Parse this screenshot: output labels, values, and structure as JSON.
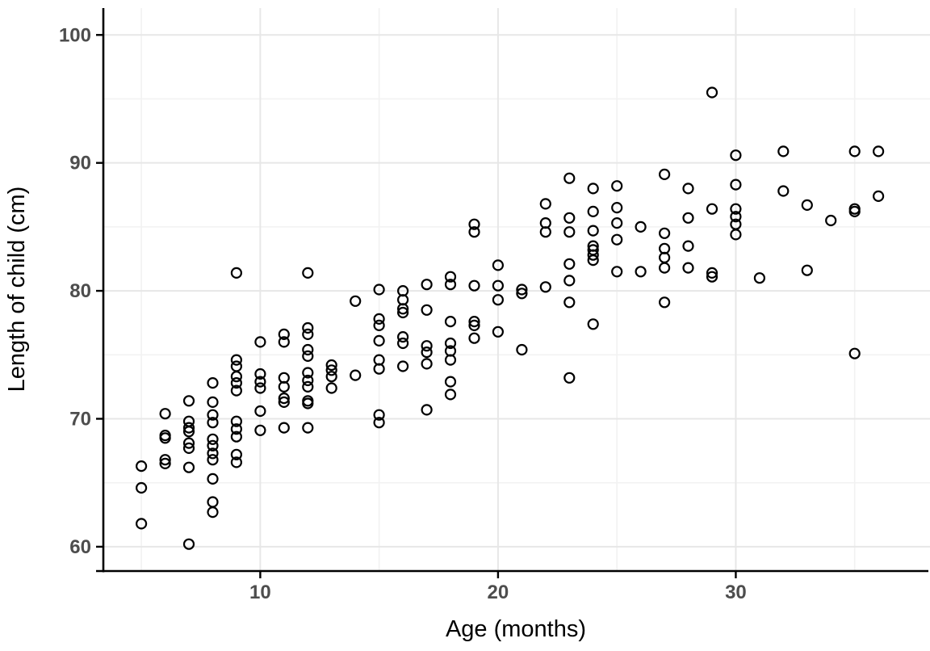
{
  "figure": {
    "background": "#ffffff"
  },
  "style": {
    "point_stroke": "#000000",
    "point_radius": 6,
    "point_stroke_width": 2.2,
    "grid_major_color": "#e7e7e7",
    "grid_minor_color": "#f2f2f2",
    "axis_color": "#000000",
    "tick_label_color": "#4d4d4d",
    "axis_title_color": "#000000"
  },
  "chart_data": {
    "type": "scatter",
    "title": "",
    "xlabel": "Age (months)",
    "ylabel": "Length of child (cm)",
    "x_ticks": [
      10,
      20,
      30
    ],
    "x_minor_ticks": [
      5,
      15,
      25,
      35
    ],
    "y_ticks": [
      60,
      70,
      80,
      90,
      100
    ],
    "y_minor_ticks": [
      65,
      75,
      85,
      95
    ],
    "xlim": [
      3.4,
      38.1
    ],
    "ylim": [
      58.1,
      102.1
    ],
    "grid": true,
    "legend": "none",
    "marker": "open-circle",
    "points": [
      [
        5,
        66.3
      ],
      [
        5,
        64.6
      ],
      [
        5,
        61.8
      ],
      [
        6,
        70.4
      ],
      [
        6,
        68.7
      ],
      [
        6,
        68.5
      ],
      [
        6,
        66.8
      ],
      [
        6,
        66.5
      ],
      [
        7,
        71.4
      ],
      [
        7,
        69.8
      ],
      [
        7,
        69.3
      ],
      [
        7,
        69.0
      ],
      [
        7,
        68.1
      ],
      [
        7,
        67.7
      ],
      [
        7,
        66.2
      ],
      [
        7,
        60.2
      ],
      [
        8,
        72.8
      ],
      [
        8,
        71.3
      ],
      [
        8,
        70.3
      ],
      [
        8,
        69.7
      ],
      [
        8,
        68.4
      ],
      [
        8,
        67.9
      ],
      [
        8,
        67.3
      ],
      [
        8,
        66.8
      ],
      [
        8,
        65.3
      ],
      [
        8,
        63.5
      ],
      [
        8,
        62.7
      ],
      [
        9,
        81.4
      ],
      [
        9,
        74.6
      ],
      [
        9,
        74.1
      ],
      [
        9,
        73.3
      ],
      [
        9,
        72.8
      ],
      [
        9,
        72.2
      ],
      [
        9,
        69.8
      ],
      [
        9,
        69.2
      ],
      [
        9,
        68.6
      ],
      [
        9,
        67.2
      ],
      [
        9,
        66.6
      ],
      [
        10,
        76.0
      ],
      [
        10,
        73.5
      ],
      [
        10,
        72.9
      ],
      [
        10,
        72.4
      ],
      [
        10,
        70.6
      ],
      [
        10,
        69.1
      ],
      [
        11,
        76.6
      ],
      [
        11,
        76.0
      ],
      [
        11,
        73.2
      ],
      [
        11,
        72.5
      ],
      [
        11,
        71.6
      ],
      [
        11,
        71.3
      ],
      [
        11,
        69.3
      ],
      [
        12,
        81.4
      ],
      [
        12,
        77.1
      ],
      [
        12,
        76.6
      ],
      [
        12,
        75.4
      ],
      [
        12,
        74.9
      ],
      [
        12,
        73.6
      ],
      [
        12,
        73.0
      ],
      [
        12,
        72.5
      ],
      [
        12,
        71.4
      ],
      [
        12,
        71.2
      ],
      [
        12,
        69.3
      ],
      [
        13,
        74.2
      ],
      [
        13,
        73.8
      ],
      [
        13,
        73.3
      ],
      [
        13,
        72.4
      ],
      [
        14,
        79.2
      ],
      [
        14,
        73.4
      ],
      [
        15,
        80.1
      ],
      [
        15,
        77.8
      ],
      [
        15,
        77.3
      ],
      [
        15,
        76.1
      ],
      [
        15,
        74.6
      ],
      [
        15,
        73.9
      ],
      [
        15,
        70.3
      ],
      [
        15,
        69.7
      ],
      [
        16,
        80.0
      ],
      [
        16,
        79.3
      ],
      [
        16,
        78.6
      ],
      [
        16,
        78.3
      ],
      [
        16,
        76.4
      ],
      [
        16,
        75.9
      ],
      [
        16,
        74.1
      ],
      [
        17,
        80.5
      ],
      [
        17,
        78.5
      ],
      [
        17,
        75.7
      ],
      [
        17,
        75.2
      ],
      [
        17,
        74.3
      ],
      [
        17,
        70.7
      ],
      [
        18,
        81.1
      ],
      [
        18,
        80.5
      ],
      [
        18,
        77.6
      ],
      [
        18,
        75.9
      ],
      [
        18,
        75.3
      ],
      [
        18,
        74.6
      ],
      [
        18,
        72.9
      ],
      [
        18,
        71.9
      ],
      [
        19,
        85.2
      ],
      [
        19,
        84.6
      ],
      [
        19,
        80.4
      ],
      [
        19,
        77.6
      ],
      [
        19,
        77.3
      ],
      [
        19,
        76.3
      ],
      [
        20,
        82.0
      ],
      [
        20,
        80.4
      ],
      [
        20,
        79.3
      ],
      [
        20,
        76.8
      ],
      [
        21,
        80.1
      ],
      [
        21,
        79.8
      ],
      [
        21,
        75.4
      ],
      [
        22,
        86.8
      ],
      [
        22,
        85.3
      ],
      [
        22,
        84.6
      ],
      [
        22,
        80.3
      ],
      [
        23,
        88.8
      ],
      [
        23,
        85.7
      ],
      [
        23,
        84.6
      ],
      [
        23,
        82.1
      ],
      [
        23,
        80.8
      ],
      [
        23,
        79.1
      ],
      [
        23,
        73.2
      ],
      [
        24,
        88.0
      ],
      [
        24,
        86.2
      ],
      [
        24,
        84.7
      ],
      [
        24,
        83.5
      ],
      [
        24,
        83.2
      ],
      [
        24,
        82.8
      ],
      [
        24,
        82.4
      ],
      [
        24,
        77.4
      ],
      [
        25,
        88.2
      ],
      [
        25,
        86.5
      ],
      [
        25,
        85.3
      ],
      [
        25,
        84.0
      ],
      [
        25,
        81.5
      ],
      [
        26,
        85.0
      ],
      [
        26,
        81.5
      ],
      [
        27,
        89.1
      ],
      [
        27,
        84.5
      ],
      [
        27,
        83.3
      ],
      [
        27,
        82.6
      ],
      [
        27,
        81.8
      ],
      [
        27,
        79.1
      ],
      [
        28,
        88.0
      ],
      [
        28,
        85.7
      ],
      [
        28,
        83.5
      ],
      [
        28,
        81.8
      ],
      [
        29,
        95.5
      ],
      [
        29,
        86.4
      ],
      [
        29,
        81.4
      ],
      [
        29,
        81.1
      ],
      [
        30,
        90.6
      ],
      [
        30,
        88.3
      ],
      [
        30,
        86.4
      ],
      [
        30,
        85.8
      ],
      [
        30,
        85.2
      ],
      [
        30,
        84.4
      ],
      [
        31,
        81.0
      ],
      [
        32,
        90.9
      ],
      [
        32,
        87.8
      ],
      [
        33,
        86.7
      ],
      [
        33,
        81.6
      ],
      [
        34,
        85.5
      ],
      [
        35,
        90.9
      ],
      [
        35,
        86.4
      ],
      [
        35,
        86.2
      ],
      [
        35,
        75.1
      ],
      [
        36,
        90.9
      ],
      [
        36,
        87.4
      ]
    ]
  }
}
